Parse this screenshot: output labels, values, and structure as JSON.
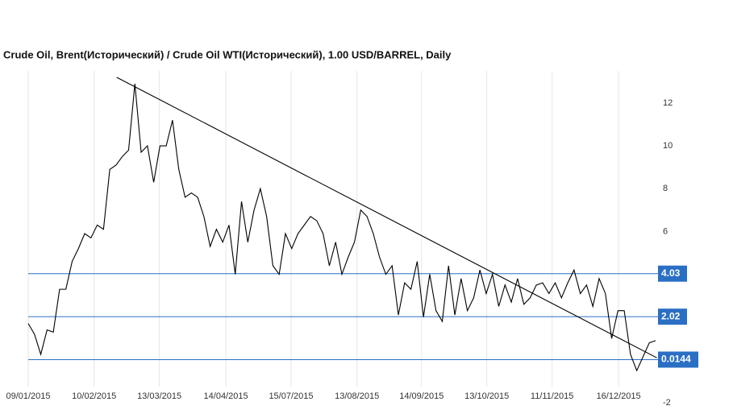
{
  "chart_data": {
    "type": "line",
    "title": "Crude Oil, Brent(Исторический) / Crude Oil WTI(Исторический), 1.00 USD/BARREL, Daily",
    "color": "#000000",
    "values": [
      1.7,
      1.2,
      0.26,
      1.4,
      1.3,
      3.3,
      3.3,
      4.6,
      5.2,
      5.9,
      5.7,
      6.3,
      6.1,
      8.9,
      9.1,
      9.5,
      9.8,
      12.9,
      9.7,
      10.0,
      8.3,
      10.0,
      10.0,
      11.2,
      8.9,
      7.6,
      7.8,
      7.6,
      6.7,
      5.3,
      6.1,
      5.5,
      6.3,
      4.0,
      7.4,
      5.5,
      7.0,
      8.0,
      6.7,
      4.4,
      4.0,
      5.9,
      5.2,
      5.9,
      6.3,
      6.7,
      6.5,
      5.9,
      4.4,
      5.5,
      4.0,
      4.8,
      5.5,
      7.0,
      6.7,
      5.9,
      4.8,
      4.0,
      4.4,
      2.1,
      3.6,
      3.3,
      4.6,
      2.0,
      4.0,
      2.3,
      1.8,
      4.4,
      2.1,
      3.8,
      2.3,
      2.9,
      4.2,
      3.1,
      4.0,
      2.5,
      3.5,
      2.7,
      3.8,
      2.6,
      2.9,
      3.5,
      3.6,
      3.1,
      3.6,
      2.9,
      3.6,
      4.2,
      3.1,
      3.5,
      2.5,
      3.8,
      3.1,
      1.0,
      2.3,
      2.3,
      0.26,
      -0.5,
      0.15,
      0.8,
      0.9
    ],
    "xlim": [
      0,
      100
    ],
    "xticks": [
      {
        "value": 0,
        "label": "09/01/2015"
      },
      {
        "value": 10.5,
        "label": "10/02/2015"
      },
      {
        "value": 20.9,
        "label": "13/03/2015"
      },
      {
        "value": 31.5,
        "label": "14/04/2015"
      },
      {
        "value": 41.9,
        "label": "15/07/2015"
      },
      {
        "value": 52.4,
        "label": "13/08/2015"
      },
      {
        "value": 62.7,
        "label": "14/09/2015"
      },
      {
        "value": 73.1,
        "label": "13/10/2015"
      },
      {
        "value": 83.5,
        "label": "11/11/2015"
      },
      {
        "value": 94.1,
        "label": "16/12/2015"
      }
    ],
    "ylim": [
      -2,
      13.5
    ],
    "yticks": [
      -2,
      6,
      8,
      10,
      12
    ],
    "levels": [
      4.03,
      2.02,
      0.0144
    ],
    "level_color": "#2a6fc4",
    "trendline": {
      "x": [
        14.1,
        100.2
      ],
      "values": [
        13.2,
        0.1
      ]
    },
    "grid": true
  }
}
